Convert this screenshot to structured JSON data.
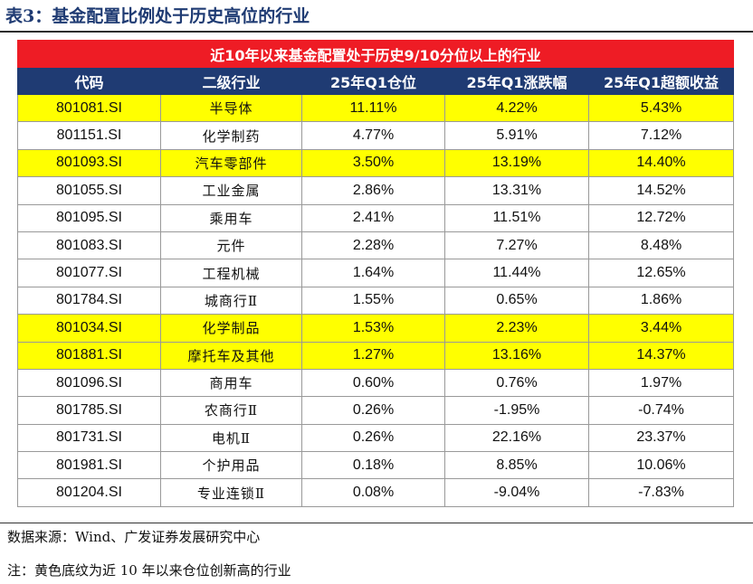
{
  "title": "表3：基金配置比例处于历史高位的行业",
  "table": {
    "banner": "近10年以来基金配置处于历史9/10分位以上的行业",
    "headers": [
      "代码",
      "二级行业",
      "25年Q1仓位",
      "25年Q1涨跌幅",
      "25年Q1超额收益"
    ],
    "rows": [
      {
        "code": "801081.SI",
        "industry": "半导体",
        "position": "11.11%",
        "change": "4.22%",
        "excess": "5.43%",
        "highlight": true
      },
      {
        "code": "801151.SI",
        "industry": "化学制药",
        "position": "4.77%",
        "change": "5.91%",
        "excess": "7.12%",
        "highlight": false
      },
      {
        "code": "801093.SI",
        "industry": "汽车零部件",
        "position": "3.50%",
        "change": "13.19%",
        "excess": "14.40%",
        "highlight": true
      },
      {
        "code": "801055.SI",
        "industry": "工业金属",
        "position": "2.86%",
        "change": "13.31%",
        "excess": "14.52%",
        "highlight": false
      },
      {
        "code": "801095.SI",
        "industry": "乘用车",
        "position": "2.41%",
        "change": "11.51%",
        "excess": "12.72%",
        "highlight": false
      },
      {
        "code": "801083.SI",
        "industry": "元件",
        "position": "2.28%",
        "change": "7.27%",
        "excess": "8.48%",
        "highlight": false
      },
      {
        "code": "801077.SI",
        "industry": "工程机械",
        "position": "1.64%",
        "change": "11.44%",
        "excess": "12.65%",
        "highlight": false
      },
      {
        "code": "801784.SI",
        "industry": "城商行Ⅱ",
        "position": "1.55%",
        "change": "0.65%",
        "excess": "1.86%",
        "highlight": false
      },
      {
        "code": "801034.SI",
        "industry": "化学制品",
        "position": "1.53%",
        "change": "2.23%",
        "excess": "3.44%",
        "highlight": true
      },
      {
        "code": "801881.SI",
        "industry": "摩托车及其他",
        "position": "1.27%",
        "change": "13.16%",
        "excess": "14.37%",
        "highlight": true
      },
      {
        "code": "801096.SI",
        "industry": "商用车",
        "position": "0.60%",
        "change": "0.76%",
        "excess": "1.97%",
        "highlight": false
      },
      {
        "code": "801785.SI",
        "industry": "农商行Ⅱ",
        "position": "0.26%",
        "change": "-1.95%",
        "excess": "-0.74%",
        "highlight": false
      },
      {
        "code": "801731.SI",
        "industry": "电机Ⅱ",
        "position": "0.26%",
        "change": "22.16%",
        "excess": "23.37%",
        "highlight": false
      },
      {
        "code": "801981.SI",
        "industry": "个护用品",
        "position": "0.18%",
        "change": "8.85%",
        "excess": "10.06%",
        "highlight": false
      },
      {
        "code": "801204.SI",
        "industry": "专业连锁Ⅱ",
        "position": "0.08%",
        "change": "-9.04%",
        "excess": "-7.83%",
        "highlight": false
      }
    ]
  },
  "notes": {
    "source": "数据来源：Wind、广发证券发展研究中心",
    "remark": "注：黄色底纹为近 10 年以来仓位创新高的行业"
  },
  "colors": {
    "banner": "#ee1c25",
    "header": "#1f3b73",
    "highlight": "#ffff00",
    "title": "#1f3b73"
  }
}
